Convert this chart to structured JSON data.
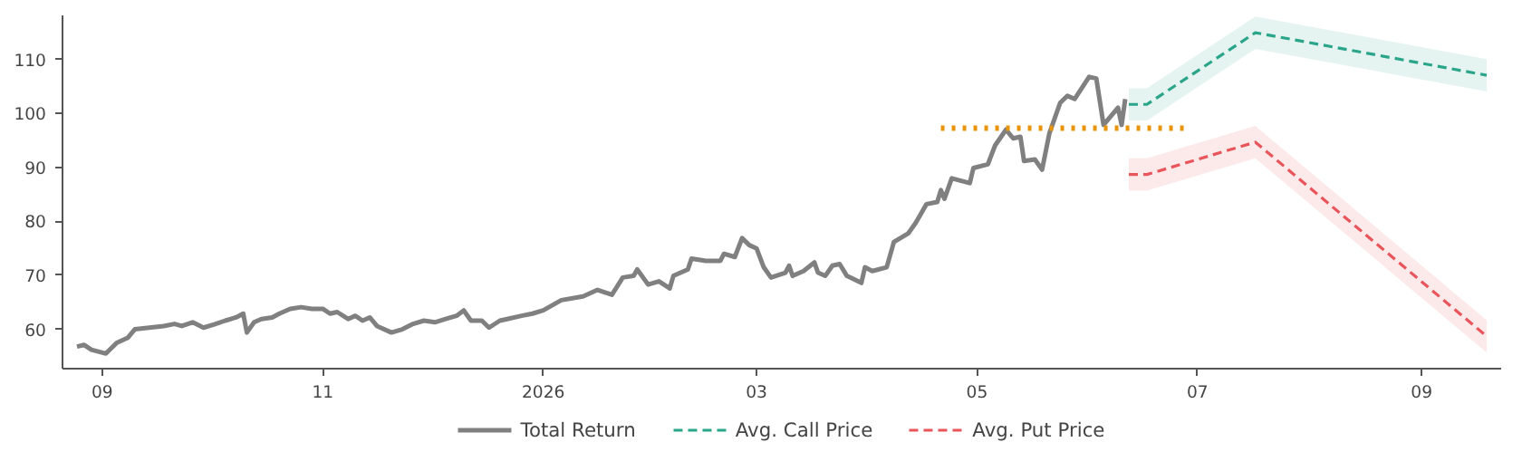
{
  "chart_data": {
    "type": "line",
    "xlim": [
      "2025-08-21",
      "2026-09-23"
    ],
    "ylim": [
      52.7,
      118.2
    ],
    "xticks": [
      {
        "value": "2025-09-01",
        "label": "09"
      },
      {
        "value": "2025-11-01",
        "label": "11"
      },
      {
        "value": "2026-01-01",
        "label": "2026"
      },
      {
        "value": "2026-03-01",
        "label": "03"
      },
      {
        "value": "2026-05-01",
        "label": "05"
      },
      {
        "value": "2026-07-01",
        "label": "07"
      },
      {
        "value": "2026-09-01",
        "label": "09"
      }
    ],
    "yticks": [
      60,
      70,
      80,
      90,
      100,
      110
    ],
    "grid": false,
    "legend": "bottom",
    "line_style": "solid",
    "marker": "none",
    "series": [
      {
        "name": "Total Return",
        "color": "#808080",
        "x": [
          "2025-08-25",
          "2025-08-27",
          "2025-08-29",
          "2025-09-02",
          "2025-09-05",
          "2025-09-08",
          "2025-09-10",
          "2025-09-14",
          "2025-09-18",
          "2025-09-21",
          "2025-09-23",
          "2025-09-26",
          "2025-09-29",
          "2025-10-02",
          "2025-10-05",
          "2025-10-08",
          "2025-10-10",
          "2025-10-11",
          "2025-10-13",
          "2025-10-15",
          "2025-10-18",
          "2025-10-20",
          "2025-10-23",
          "2025-10-26",
          "2025-10-29",
          "2025-11-01",
          "2025-11-03",
          "2025-11-05",
          "2025-11-08",
          "2025-11-10",
          "2025-11-12",
          "2025-11-14",
          "2025-11-16",
          "2025-11-20",
          "2025-11-23",
          "2025-11-26",
          "2025-11-29",
          "2025-12-02",
          "2025-12-05",
          "2025-12-08",
          "2025-12-10",
          "2025-12-12",
          "2025-12-15",
          "2025-12-17",
          "2025-12-20",
          "2025-12-22",
          "2025-12-26",
          "2025-12-29",
          "2026-01-01",
          "2026-01-06",
          "2026-01-12",
          "2026-01-16",
          "2026-01-20",
          "2026-01-23",
          "2026-01-26",
          "2026-01-27",
          "2026-01-30",
          "2026-02-02",
          "2026-02-05",
          "2026-02-06",
          "2026-02-10",
          "2026-02-11",
          "2026-02-15",
          "2026-02-19",
          "2026-02-20",
          "2026-02-23",
          "2026-02-25",
          "2026-02-27",
          "2026-03-01",
          "2026-03-03",
          "2026-03-05",
          "2026-03-09",
          "2026-03-10",
          "2026-03-11",
          "2026-03-14",
          "2026-03-17",
          "2026-03-18",
          "2026-03-20",
          "2026-03-22",
          "2026-03-24",
          "2026-03-26",
          "2026-03-30",
          "2026-03-31",
          "2026-04-02",
          "2026-04-06",
          "2026-04-08",
          "2026-04-12",
          "2026-04-14",
          "2026-04-17",
          "2026-04-20",
          "2026-04-21",
          "2026-04-22",
          "2026-04-24",
          "2026-04-29",
          "2026-04-30",
          "2026-05-04",
          "2026-05-06",
          "2026-05-09",
          "2026-05-11",
          "2026-05-13",
          "2026-05-14",
          "2026-05-17",
          "2026-05-19",
          "2026-05-21",
          "2026-05-24",
          "2026-05-26",
          "2026-05-28",
          "2026-06-01",
          "2026-06-03",
          "2026-06-05",
          "2026-06-09",
          "2026-06-10",
          "2026-06-11"
        ],
        "values": [
          56.8,
          57.1,
          56.2,
          55.5,
          57.5,
          58.4,
          60.0,
          60.3,
          60.6,
          61.0,
          60.6,
          61.3,
          60.3,
          60.9,
          61.6,
          62.2,
          62.9,
          59.4,
          61.3,
          61.9,
          62.2,
          62.9,
          63.8,
          64.1,
          63.8,
          63.8,
          62.9,
          63.2,
          61.9,
          62.5,
          61.6,
          62.2,
          60.6,
          59.4,
          60.0,
          61.0,
          61.6,
          61.3,
          61.9,
          62.5,
          63.5,
          61.6,
          61.6,
          60.3,
          61.6,
          61.9,
          62.5,
          62.9,
          63.5,
          65.4,
          66.1,
          67.3,
          66.4,
          69.6,
          69.9,
          71.1,
          68.3,
          68.9,
          67.6,
          69.9,
          71.1,
          73.1,
          72.7,
          72.7,
          74.0,
          73.4,
          76.9,
          75.6,
          75.0,
          71.5,
          69.6,
          70.5,
          71.8,
          69.9,
          70.8,
          72.4,
          70.5,
          69.9,
          71.8,
          72.1,
          69.9,
          68.6,
          71.5,
          70.8,
          71.5,
          76.2,
          77.8,
          79.7,
          83.2,
          83.6,
          85.8,
          84.2,
          88.0,
          87.1,
          89.9,
          90.6,
          94.1,
          97.0,
          95.4,
          95.7,
          91.2,
          91.5,
          89.6,
          96.3,
          102.0,
          103.3,
          102.7,
          106.8,
          106.5,
          97.9,
          101.1,
          97.9,
          102.7
        ]
      },
      {
        "name": "Avg. Call Price",
        "color": "#2aa58a",
        "line_style": "dashed",
        "x": [
          "2026-06-12",
          "2026-06-17",
          "2026-07-17",
          "2026-09-19"
        ],
        "values": [
          101.7,
          101.7,
          115.0,
          107.1
        ],
        "lower": [
          98.7,
          98.7,
          112.0,
          104.1
        ],
        "upper": [
          104.7,
          104.7,
          118.0,
          110.1
        ]
      },
      {
        "name": "Avg. Put Price",
        "color": "#e8555a",
        "line_style": "dashed",
        "x": [
          "2026-06-12",
          "2026-06-17",
          "2026-07-17",
          "2026-09-19"
        ],
        "values": [
          88.7,
          88.7,
          94.7,
          58.7
        ],
        "lower": [
          85.7,
          85.7,
          91.7,
          55.7
        ],
        "upper": [
          91.7,
          91.7,
          97.7,
          61.7
        ]
      },
      {
        "color": "#e8950c",
        "line_style": "dotted",
        "x": [
          "2026-04-21",
          "2026-06-28"
        ],
        "values": [
          97.3,
          97.3
        ]
      }
    ]
  }
}
